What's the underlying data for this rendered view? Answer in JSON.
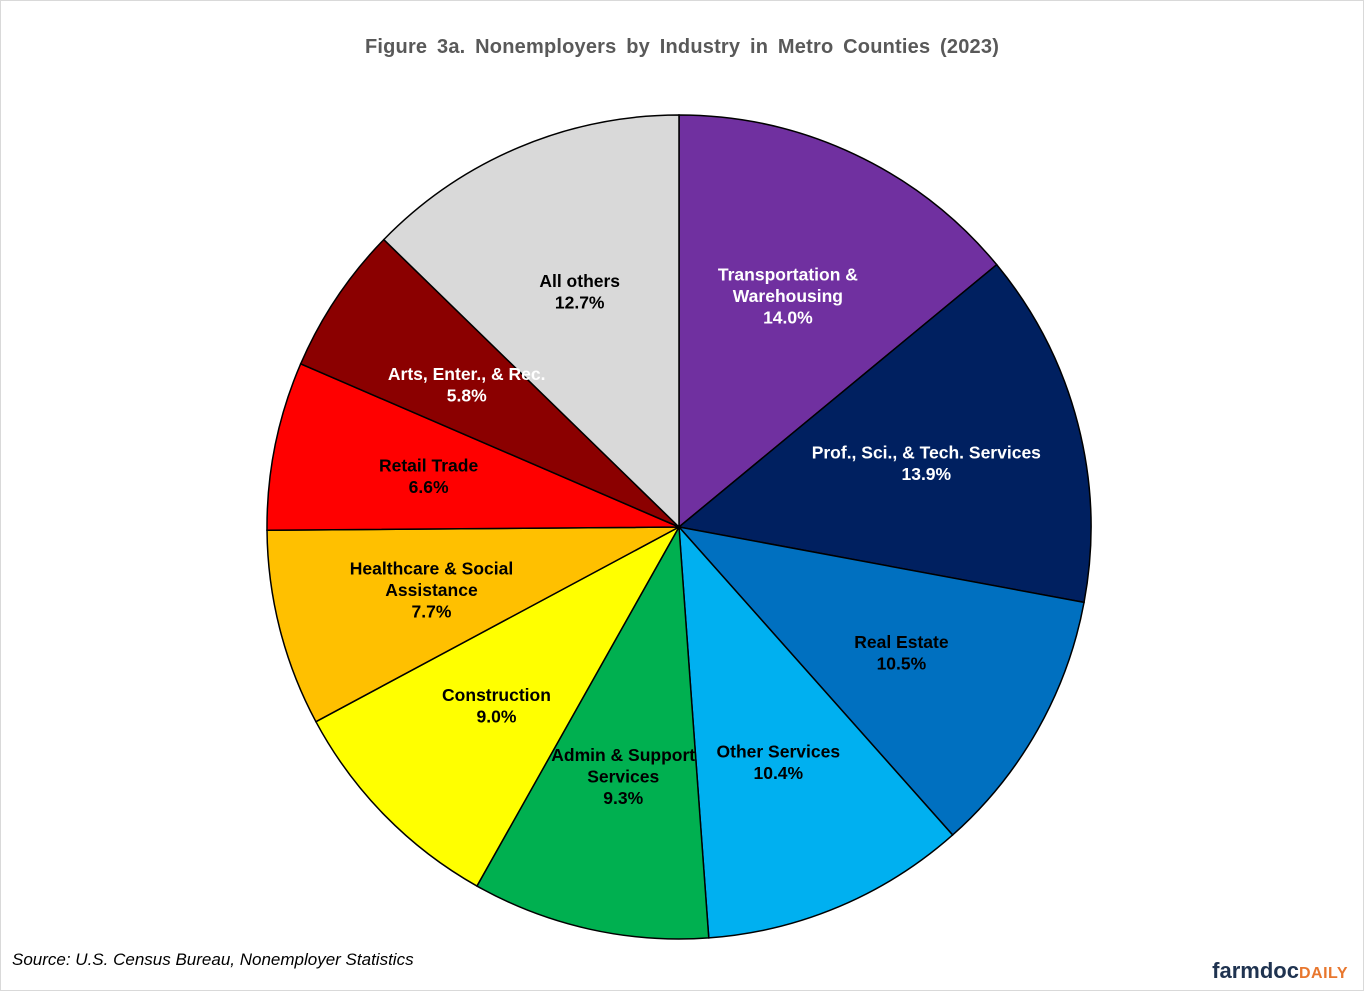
{
  "chart_data": {
    "type": "pie",
    "title": "Figure  3a. Nonemployers  by Industry  in Metro Counties  (2023)",
    "start_angle_deg": 0,
    "direction": "clockwise",
    "slices": [
      {
        "label": [
          "Transportation &",
          "Warehousing"
        ],
        "value": 14.0,
        "value_label": "14.0%",
        "color": "#7030a0",
        "text_color": "#ffffff"
      },
      {
        "label": [
          "Prof., Sci., & Tech. Services"
        ],
        "value": 13.9,
        "value_label": "13.9%",
        "color": "#002060",
        "text_color": "#ffffff"
      },
      {
        "label": [
          "Real Estate"
        ],
        "value": 10.5,
        "value_label": "10.5%",
        "color": "#0070c0",
        "text_color": "#000000"
      },
      {
        "label": [
          "Other Services"
        ],
        "value": 10.4,
        "value_label": "10.4%",
        "color": "#00b0f0",
        "text_color": "#000000"
      },
      {
        "label": [
          "Admin & Support",
          "Services"
        ],
        "value": 9.3,
        "value_label": "9.3%",
        "color": "#00b050",
        "text_color": "#000000"
      },
      {
        "label": [
          "Construction"
        ],
        "value": 9.0,
        "value_label": "9.0%",
        "color": "#ffff00",
        "text_color": "#000000"
      },
      {
        "label": [
          "Healthcare & Social",
          "Assistance"
        ],
        "value": 7.7,
        "value_label": "7.7%",
        "color": "#ffc000",
        "text_color": "#000000"
      },
      {
        "label": [
          "Retail Trade"
        ],
        "value": 6.6,
        "value_label": "6.6%",
        "color": "#ff0000",
        "text_color": "#000000"
      },
      {
        "label": [
          "Arts, Enter., & Rec."
        ],
        "value": 5.8,
        "value_label": "5.8%",
        "color": "#8b0000",
        "text_color": "#ffffff"
      },
      {
        "label": [
          "All others"
        ],
        "value": 12.7,
        "value_label": "12.7%",
        "color": "#d9d9d9",
        "text_color": "#000000"
      }
    ]
  },
  "source": "Source: U.S. Census Bureau, Nonemployer Statistics",
  "logo": {
    "main": "farmdoc",
    "sub": "DAILY"
  }
}
